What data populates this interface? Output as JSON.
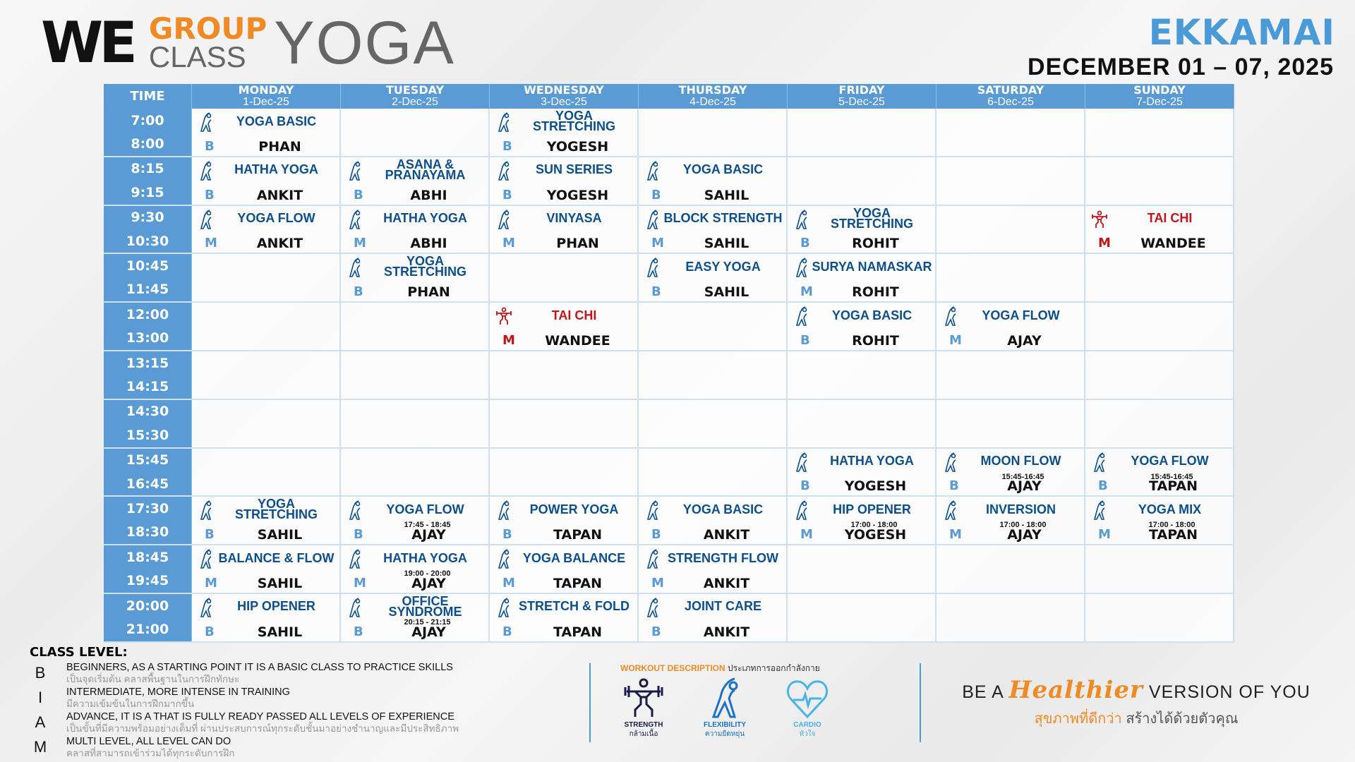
{
  "logo": {
    "we": "WE",
    "group": "GROUP",
    "class": "CLASS",
    "yoga": "YOGA"
  },
  "branch": "EKKAMAI",
  "date_range": "DECEMBER 01 – 07, 2025",
  "colors": {
    "header_blue": "#5b9bd5",
    "class_blue": "#0d4f8b",
    "tai_chi_red": "#c0161b",
    "accent_orange": "#f08a24"
  },
  "table": {
    "time_header": "TIME",
    "days": [
      {
        "day": "MONDAY",
        "date": "1-Dec-25"
      },
      {
        "day": "TUESDAY",
        "date": "2-Dec-25"
      },
      {
        "day": "WEDNESDAY",
        "date": "3-Dec-25"
      },
      {
        "day": "THURSDAY",
        "date": "4-Dec-25"
      },
      {
        "day": "FRIDAY",
        "date": "5-Dec-25"
      },
      {
        "day": "SATURDAY",
        "date": "6-Dec-25"
      },
      {
        "day": "SUNDAY",
        "date": "7-Dec-25"
      }
    ],
    "rows": [
      {
        "start": "7:00",
        "end": "8:00",
        "cells": [
          {
            "name": "YOGA BASIC",
            "level": "B",
            "instructor": "PHAN",
            "icon": "flexibility-icon"
          },
          null,
          {
            "name": "YOGA STRETCHING",
            "level": "B",
            "instructor": "YOGESH",
            "icon": "flexibility-icon"
          },
          null,
          null,
          null,
          null
        ]
      },
      {
        "start": "8:15",
        "end": "9:15",
        "cells": [
          {
            "name": "HATHA YOGA",
            "level": "B",
            "instructor": "ANKIT",
            "icon": "flexibility-icon"
          },
          {
            "name": "ASANA & PRANAYAMA",
            "level": "B",
            "instructor": "ABHI",
            "icon": "flexibility-icon"
          },
          {
            "name": "SUN SERIES",
            "level": "B",
            "instructor": "YOGESH",
            "icon": "flexibility-icon"
          },
          {
            "name": "YOGA BASIC",
            "level": "B",
            "instructor": "SAHIL",
            "icon": "flexibility-icon"
          },
          null,
          null,
          null
        ]
      },
      {
        "start": "9:30",
        "end": "10:30",
        "cells": [
          {
            "name": "YOGA FLOW",
            "level": "M",
            "instructor": "ANKIT",
            "icon": "flexibility-icon"
          },
          {
            "name": "HATHA YOGA",
            "level": "M",
            "instructor": "ABHI",
            "icon": "flexibility-icon"
          },
          {
            "name": "VINYASA",
            "level": "M",
            "instructor": "PHAN",
            "icon": "flexibility-icon"
          },
          {
            "name": "BLOCK STRENGTH",
            "level": "M",
            "instructor": "SAHIL",
            "icon": "flexibility-icon"
          },
          {
            "name": "YOGA STRETCHING",
            "level": "B",
            "instructor": "ROHIT",
            "icon": "flexibility-icon"
          },
          null,
          {
            "name": "TAI CHI",
            "level": "M",
            "instructor": "WANDEE",
            "icon": "strength-icon"
          }
        ]
      },
      {
        "start": "10:45",
        "end": "11:45",
        "cells": [
          null,
          {
            "name": "YOGA STRETCHING",
            "level": "B",
            "instructor": "PHAN",
            "icon": "flexibility-icon"
          },
          null,
          {
            "name": "EASY YOGA",
            "level": "B",
            "instructor": "SAHIL",
            "icon": "flexibility-icon"
          },
          {
            "name": "SURYA NAMASKAR",
            "level": "M",
            "instructor": "ROHIT",
            "icon": "flexibility-icon"
          },
          null,
          null
        ]
      },
      {
        "start": "12:00",
        "end": "13:00",
        "cells": [
          null,
          null,
          {
            "name": "TAI CHI",
            "level": "M",
            "instructor": "WANDEE",
            "icon": "strength-icon"
          },
          null,
          {
            "name": "YOGA BASIC",
            "level": "B",
            "instructor": "ROHIT",
            "icon": "flexibility-icon"
          },
          {
            "name": "YOGA FLOW",
            "level": "M",
            "instructor": "AJAY",
            "icon": "flexibility-icon"
          },
          null
        ]
      },
      {
        "start": "13:15",
        "end": "14:15",
        "cells": [
          null,
          null,
          null,
          null,
          null,
          null,
          null
        ]
      },
      {
        "start": "14:30",
        "end": "15:30",
        "cells": [
          null,
          null,
          null,
          null,
          null,
          null,
          null
        ]
      },
      {
        "start": "15:45",
        "end": "16:45",
        "cells": [
          null,
          null,
          null,
          null,
          {
            "name": "HATHA YOGA",
            "level": "B",
            "instructor": "YOGESH",
            "icon": "flexibility-icon"
          },
          {
            "name": "MOON FLOW",
            "level": "B",
            "instructor": "AJAY",
            "time": "15:45-16:45",
            "icon": "flexibility-icon"
          },
          {
            "name": "YOGA FLOW",
            "level": "B",
            "instructor": "TAPAN",
            "time": "15:45-16:45",
            "icon": "flexibility-icon"
          }
        ]
      },
      {
        "start": "17:30",
        "end": "18:30",
        "cells": [
          {
            "name": "YOGA STRETCHING",
            "level": "B",
            "instructor": "SAHIL",
            "icon": "flexibility-icon"
          },
          {
            "name": "YOGA FLOW",
            "level": "B",
            "instructor": "AJAY",
            "time": "17:45 - 18:45",
            "icon": "flexibility-icon"
          },
          {
            "name": "POWER YOGA",
            "level": "B",
            "instructor": "TAPAN",
            "icon": "flexibility-icon"
          },
          {
            "name": "YOGA BASIC",
            "level": "B",
            "instructor": "ANKIT",
            "icon": "flexibility-icon"
          },
          {
            "name": "HIP OPENER",
            "level": "M",
            "instructor": "YOGESH",
            "time": "17:00 - 18:00",
            "icon": "flexibility-icon"
          },
          {
            "name": "INVERSION",
            "level": "M",
            "instructor": "AJAY",
            "time": "17:00 - 18:00",
            "icon": "flexibility-icon"
          },
          {
            "name": "YOGA MIX",
            "level": "M",
            "instructor": "TAPAN",
            "time": "17:00 - 18:00",
            "icon": "flexibility-icon"
          }
        ]
      },
      {
        "start": "18:45",
        "end": "19:45",
        "cells": [
          {
            "name": "BALANCE & FLOW",
            "level": "M",
            "instructor": "SAHIL",
            "icon": "flexibility-icon"
          },
          {
            "name": "HATHA YOGA",
            "level": "M",
            "instructor": "AJAY",
            "time": "19:00 - 20:00",
            "icon": "flexibility-icon"
          },
          {
            "name": "YOGA BALANCE",
            "level": "M",
            "instructor": "TAPAN",
            "icon": "flexibility-icon"
          },
          {
            "name": "STRENGTH FLOW",
            "level": "M",
            "instructor": "ANKIT",
            "icon": "flexibility-icon"
          },
          null,
          null,
          null
        ]
      },
      {
        "start": "20:00",
        "end": "21:00",
        "cells": [
          {
            "name": "HIP OPENER",
            "level": "B",
            "instructor": "SAHIL",
            "icon": "flexibility-icon"
          },
          {
            "name": "OFFICE SYNDROME",
            "level": "B",
            "instructor": "AJAY",
            "time": "20:15 - 21:15",
            "icon": "flexibility-icon"
          },
          {
            "name": "STRETCH & FOLD",
            "level": "B",
            "instructor": "TAPAN",
            "icon": "flexibility-icon"
          },
          {
            "name": "JOINT CARE",
            "level": "B",
            "instructor": "ANKIT",
            "icon": "flexibility-icon"
          },
          null,
          null,
          null
        ]
      }
    ]
  },
  "class_level": {
    "title": "CLASS LEVEL:",
    "levels": [
      {
        "key": "B",
        "en": "BEGINNERS, AS A STARTING POINT IT IS A BASIC CLASS TO PRACTICE SKILLS",
        "th": "เป็นจุดเริ่มต้น คลาสพื้นฐานในการฝึกทักษะ"
      },
      {
        "key": "I",
        "en": "INTERMEDIATE, MORE INTENSE IN TRAINING",
        "th": "มีความเข้มข้นในการฝึกมากขึ้น"
      },
      {
        "key": "A",
        "en": "ADVANCE, IT IS A THAT IS FULLY READY PASSED ALL LEVELS OF EXPERIENCE",
        "th": "เป็นขั้นที่มีความพร้อมอย่างเต็มที่ ผ่านประสบการณ์ทุกระดับชั้นมาอย่างชำนาญและมีประสิทธิภาพ"
      },
      {
        "key": "M",
        "en": "MULTI LEVEL, ALL LEVEL CAN DO",
        "th": "คลาสที่สามารถเข้าร่วมได้ทุกระดับการฝึก"
      }
    ]
  },
  "workout": {
    "title_en": "WORKOUT DESCRIPTION",
    "title_th": "ประเภทการออกกำลังกาย",
    "items": [
      {
        "en": "STRENGTH",
        "th": "กล้ามเนื้อ",
        "icon": "strength-icon",
        "color": "#1a1a4a"
      },
      {
        "en": "FLEXIBILITY",
        "th": "ความยืดหยุ่น",
        "icon": "flexibility-icon",
        "color": "#1a73c8"
      },
      {
        "en": "CARDIO",
        "th": "หัวใจ",
        "icon": "cardio-heart-icon",
        "color": "#4ab3e6"
      }
    ]
  },
  "tagline": {
    "pre": "BE A",
    "accent": "Healthier",
    "post": "VERSION OF YOU",
    "th_accent": "สุขภาพที่ดีกว่า",
    "th_rest": "สร้างได้ด้วยตัวคุณ"
  }
}
